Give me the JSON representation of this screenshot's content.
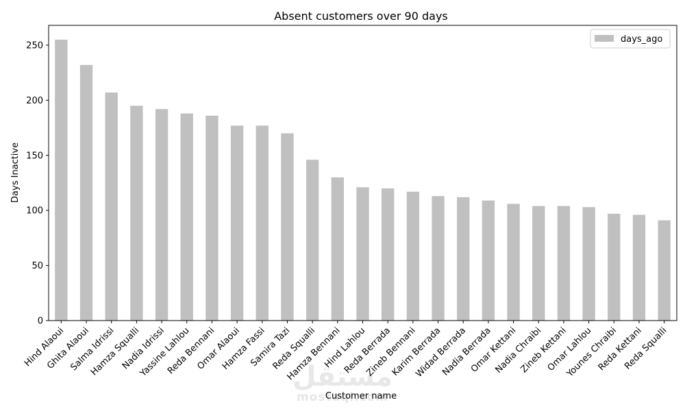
{
  "chart_data": {
    "type": "bar",
    "title": "Absent customers over 90 days",
    "xlabel": "Customer name",
    "ylabel": "Days Inactive",
    "categories": [
      "Hind Alaoui",
      "Ghita Alaoui",
      "Salma Idrissi",
      "Hamza Squalli",
      "Nadia Idrissi",
      "Yassine Lahlou",
      "Reda Bennani",
      "Omar Alaoui",
      "Hamza Fassi",
      "Samira Tazi",
      "Reda Squalli",
      "Hamza Bennani",
      "Hind Lahlou",
      "Reda Berrada",
      "Zineb Bennani",
      "Karim Berrada",
      "Widad Berrada",
      "Nadia Berrada",
      "Omar Kettani",
      "Nadia Chraibi",
      "Zineb Kettani",
      "Omar Lahlou",
      "Younes Chraibi",
      "Reda Kettani",
      "Reda Squalli"
    ],
    "series": [
      {
        "name": "days_ago",
        "values": [
          255,
          232,
          207,
          195,
          192,
          188,
          186,
          177,
          177,
          170,
          146,
          130,
          121,
          120,
          117,
          113,
          112,
          109,
          106,
          104,
          104,
          103,
          97,
          96,
          91
        ],
        "color": "#c0c0c0"
      }
    ],
    "ylim": [
      0,
      268
    ],
    "yticks": [
      0,
      50,
      100,
      150,
      200,
      250
    ],
    "grid": false,
    "legend": "top-right"
  },
  "watermark": {
    "arabic": "مستقل",
    "latin": "mostaql.com"
  }
}
